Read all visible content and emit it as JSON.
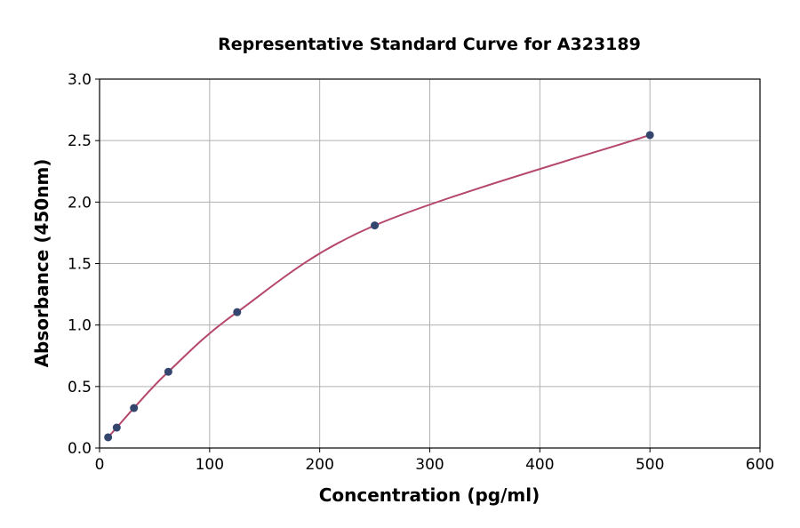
{
  "chart_data": {
    "type": "scatter",
    "title": "Representative Standard Curve for A323189",
    "xlabel": "Concentration (pg/ml)",
    "ylabel": "Absorbance (450nm)",
    "xlim": [
      0,
      600
    ],
    "ylim": [
      0,
      3.0
    ],
    "xticks": [
      "0",
      "100",
      "200",
      "300",
      "400",
      "500",
      "600"
    ],
    "yticks": [
      "0.0",
      "0.5",
      "1.0",
      "1.5",
      "2.0",
      "2.5",
      "3.0"
    ],
    "grid": true,
    "points": [
      {
        "x": 7.8,
        "y": 0.087
      },
      {
        "x": 15.6,
        "y": 0.166
      },
      {
        "x": 31.25,
        "y": 0.325
      },
      {
        "x": 62.5,
        "y": 0.62
      },
      {
        "x": 125,
        "y": 1.105
      },
      {
        "x": 250,
        "y": 1.81
      },
      {
        "x": 500,
        "y": 2.545
      }
    ],
    "colors": {
      "curve": "#b5476b",
      "marker": "#34466e",
      "grid": "#b0b0b0"
    }
  }
}
